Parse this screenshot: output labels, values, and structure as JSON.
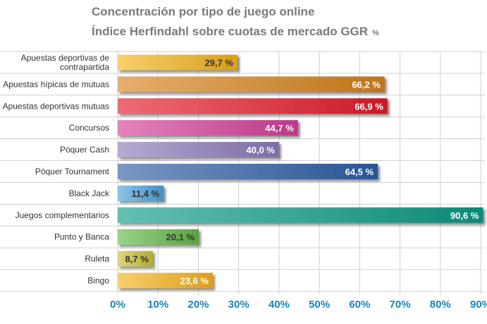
{
  "chart_data": {
    "type": "bar",
    "orientation": "horizontal",
    "title": "Concentración por tipo de juego online",
    "subtitle": "Índice Herfindahl sobre cuotas de mercado GGR",
    "unit": "%",
    "categories": [
      "Apuestas deportivas de contrapartida",
      "Apuestas hípicas de mutuas",
      "Apuestas deportivas mutuas",
      "Concursos",
      "Póquer Cash",
      "Póquer Tournament",
      "Black Jack",
      "Juegos complementarios",
      "Punto y Banca",
      "Ruleta",
      "Bingo"
    ],
    "category_lines": [
      [
        "Apuestas deportivas de",
        "contrapartida"
      ],
      [
        "Apuestas hípicas de mutuas"
      ],
      [
        "Apuestas deportivas mutuas"
      ],
      [
        "Concursos"
      ],
      [
        "Póquer Cash"
      ],
      [
        "Póquer Tournament"
      ],
      [
        "Black Jack"
      ],
      [
        "Juegos complementarios"
      ],
      [
        "Punto y Banca"
      ],
      [
        "Ruleta"
      ],
      [
        "Bingo"
      ]
    ],
    "values": [
      29.7,
      66.2,
      66.9,
      44.7,
      40.0,
      64.5,
      11.4,
      90.6,
      20.1,
      8.7,
      23.6
    ],
    "value_labels": [
      "29,7 %",
      "66,2 %",
      "66,9 %",
      "44,7 %",
      "40,0 %",
      "64,5 %",
      "11,4 %",
      "90,6 %",
      "20,1 %",
      "8,7 %",
      "23,6 %"
    ],
    "bar_colors": [
      "#f5b51e",
      "#d8841e",
      "#e51d2a",
      "#d6409a",
      "#8e7cb8",
      "#2f5fa8",
      "#4fa3dc",
      "#109c88",
      "#66b94a",
      "#c8c238",
      "#f5b51e"
    ],
    "label_colors": [
      "#333333",
      "#ffffff",
      "#ffffff",
      "#ffffff",
      "#ffffff",
      "#ffffff",
      "#333333",
      "#ffffff",
      "#333333",
      "#333333",
      "#ffffff"
    ],
    "xlim": [
      0,
      90
    ],
    "xticks": [
      "0%",
      "10%",
      "20%",
      "30%",
      "40%",
      "50%",
      "60%",
      "70%",
      "80%",
      "90%"
    ],
    "xtick_color": "#1a82b8",
    "grid": true
  }
}
